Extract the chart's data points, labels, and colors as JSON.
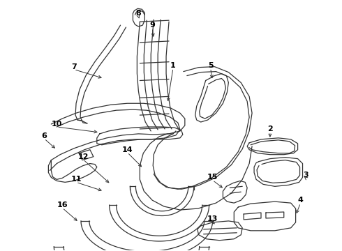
{
  "bg_color": "#ffffff",
  "line_color": "#333333",
  "label_color": "#000000",
  "figw": 4.9,
  "figh": 3.6,
  "dpi": 100
}
